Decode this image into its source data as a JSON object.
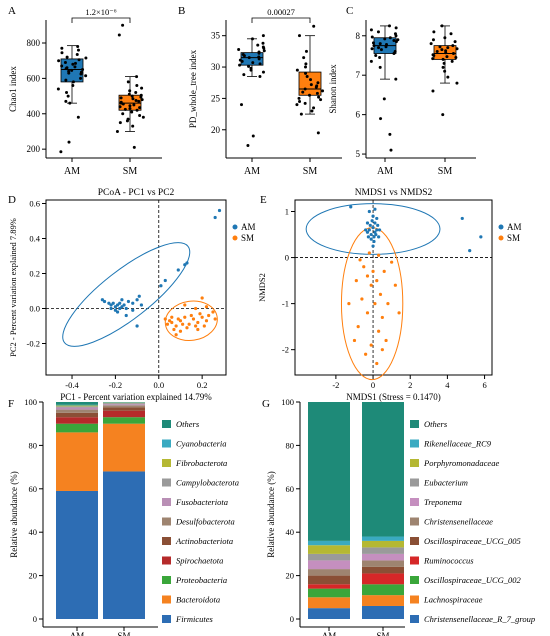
{
  "figure": {
    "background": "#ffffff"
  },
  "colors": {
    "AM": "#1f77b4",
    "SM": "#ff7f0e"
  },
  "chart_data": [
    {
      "panel": "A",
      "type": "box",
      "ylabel": "Chao1 index",
      "categories": [
        "AM",
        "SM"
      ],
      "yticks": [
        200,
        400,
        600,
        800
      ],
      "ylim": [
        150,
        930
      ],
      "significance": "1.2×10⁻⁶",
      "boxes": [
        {
          "name": "AM",
          "min": 460,
          "q1": 580,
          "median": 650,
          "q3": 710,
          "max": 785
        },
        {
          "name": "SM",
          "min": 300,
          "q1": 420,
          "median": 460,
          "q3": 505,
          "max": 610
        }
      ],
      "points": {
        "AM": [
          780,
          770,
          760,
          745,
          735,
          720,
          715,
          705,
          700,
          690,
          685,
          680,
          670,
          665,
          660,
          655,
          650,
          645,
          640,
          635,
          630,
          625,
          615,
          600,
          590,
          580,
          560,
          540,
          520,
          500,
          470,
          460,
          380,
          240,
          185
        ],
        "SM": [
          900,
          845,
          610,
          580,
          560,
          545,
          530,
          520,
          510,
          505,
          500,
          495,
          490,
          485,
          480,
          475,
          470,
          465,
          460,
          455,
          450,
          445,
          440,
          435,
          430,
          425,
          420,
          410,
          400,
          390,
          380,
          370,
          360,
          350,
          330,
          300,
          210
        ]
      }
    },
    {
      "panel": "B",
      "type": "box",
      "ylabel": "PD_whole_tree index",
      "categories": [
        "AM",
        "SM"
      ],
      "yticks": [
        20,
        25,
        30,
        35
      ],
      "ylim": [
        15.5,
        37.5
      ],
      "significance": "0.00027",
      "boxes": [
        {
          "name": "AM",
          "min": 28.5,
          "q1": 30.3,
          "median": 31.5,
          "q3": 32.3,
          "max": 34.5
        },
        {
          "name": "SM",
          "min": 22.5,
          "q1": 25.5,
          "median": 26.5,
          "q3": 29.2,
          "max": 35.0
        }
      ],
      "points": {
        "AM": [
          35.0,
          34.5,
          33.8,
          33.5,
          33.2,
          33.0,
          32.8,
          32.6,
          32.4,
          32.2,
          32.0,
          31.8,
          31.6,
          31.5,
          31.3,
          31.1,
          30.9,
          30.7,
          30.5,
          30.3,
          30.1,
          29.8,
          29.5,
          29.2,
          28.8,
          28.5,
          24.0,
          19.0,
          17.5
        ],
        "SM": [
          36.5,
          35.0,
          32.5,
          31.5,
          30.5,
          30.0,
          29.5,
          29.0,
          28.5,
          28.0,
          27.5,
          27.2,
          27.0,
          26.8,
          26.5,
          26.2,
          26.0,
          25.8,
          25.5,
          25.2,
          25.0,
          24.8,
          24.5,
          24.2,
          24.0,
          23.5,
          23.0,
          22.5,
          19.5
        ]
      }
    },
    {
      "panel": "C",
      "type": "box",
      "ylabel": "Shanon index",
      "categories": [
        "AM",
        "SM"
      ],
      "yticks": [
        5,
        6,
        7,
        8
      ],
      "ylim": [
        4.9,
        8.4
      ],
      "significance": "",
      "boxes": [
        {
          "name": "AM",
          "min": 6.9,
          "q1": 7.55,
          "median": 7.75,
          "q3": 7.95,
          "max": 8.25
        },
        {
          "name": "SM",
          "min": 6.8,
          "q1": 7.4,
          "median": 7.55,
          "q3": 7.75,
          "max": 8.25
        }
      ],
      "points": {
        "AM": [
          8.25,
          8.2,
          8.15,
          8.1,
          8.05,
          8.0,
          7.97,
          7.95,
          7.92,
          7.9,
          7.88,
          7.85,
          7.82,
          7.8,
          7.78,
          7.75,
          7.72,
          7.7,
          7.67,
          7.65,
          7.6,
          7.55,
          7.5,
          7.45,
          7.35,
          7.2,
          6.9,
          6.4,
          5.9,
          5.5,
          5.1
        ],
        "SM": [
          8.25,
          8.1,
          8.05,
          7.95,
          7.9,
          7.85,
          7.8,
          7.75,
          7.72,
          7.7,
          7.67,
          7.65,
          7.62,
          7.6,
          7.57,
          7.55,
          7.52,
          7.5,
          7.47,
          7.45,
          7.42,
          7.4,
          7.35,
          7.3,
          7.2,
          7.1,
          6.95,
          6.8,
          6.6,
          6.0
        ]
      }
    },
    {
      "panel": "D",
      "type": "scatter",
      "title": "PCoA - PC1 vs PC2",
      "xlabel": "PC1 - Percent variation explained 14.79%",
      "ylabel": "PC2 - Percent variation explained 7.89%",
      "xlim": [
        -0.52,
        0.31
      ],
      "ylim": [
        -0.38,
        0.62
      ],
      "xticks": [
        -0.4,
        -0.2,
        0.0,
        0.2
      ],
      "xtick_labels": [
        "-0.4",
        "-0.2",
        "0.0",
        "0.2"
      ],
      "yticks": [
        -0.2,
        0.0,
        0.2,
        0.4,
        0.6
      ],
      "ytick_labels": [
        "-0.2",
        "0.0",
        "0.2",
        "0.4",
        "0.6"
      ],
      "legend": [
        "AM",
        "SM"
      ],
      "legend_position": "right",
      "ellipses": [
        {
          "group": "AM",
          "cx": -0.15,
          "cy": 0.08,
          "rx": 0.42,
          "ry": 0.13,
          "angle_deg": 38
        },
        {
          "group": "SM",
          "cx": 0.15,
          "cy": -0.07,
          "rx": 0.14,
          "ry": 0.105,
          "angle_deg": 8
        }
      ],
      "series": [
        {
          "name": "AM",
          "points": [
            [
              -0.25,
              0.04
            ],
            [
              -0.23,
              0.03
            ],
            [
              -0.22,
              0.02
            ],
            [
              -0.21,
              0.03
            ],
            [
              -0.2,
              0.01
            ],
            [
              -0.19,
              0.02
            ],
            [
              -0.18,
              0.03
            ],
            [
              -0.17,
              0.01
            ],
            [
              -0.16,
              0.02
            ],
            [
              -0.15,
              0.0
            ],
            [
              -0.22,
              0.0
            ],
            [
              -0.2,
              -0.01
            ],
            [
              -0.18,
              0.0
            ],
            [
              -0.14,
              0.04
            ],
            [
              -0.12,
              0.03
            ],
            [
              -0.1,
              0.05
            ],
            [
              -0.26,
              0.05
            ],
            [
              -0.19,
              -0.02
            ],
            [
              -0.15,
              -0.04
            ],
            [
              -0.17,
              0.05
            ],
            [
              -0.08,
              0.02
            ],
            [
              -0.12,
              -0.01
            ],
            [
              0.01,
              0.13
            ],
            [
              0.03,
              0.16
            ],
            [
              -0.09,
              0.07
            ],
            [
              0.09,
              0.22
            ],
            [
              0.13,
              0.26
            ],
            [
              0.26,
              0.52
            ],
            [
              0.28,
              0.56
            ],
            [
              0.12,
              0.25
            ],
            [
              -0.1,
              -0.1
            ]
          ]
        },
        {
          "name": "SM",
          "points": [
            [
              0.05,
              -0.07
            ],
            [
              0.06,
              -0.08
            ],
            [
              0.08,
              -0.1
            ],
            [
              0.1,
              -0.07
            ],
            [
              0.12,
              -0.05
            ],
            [
              0.14,
              -0.09
            ],
            [
              0.16,
              -0.06
            ],
            [
              0.18,
              -0.08
            ],
            [
              0.2,
              -0.05
            ],
            [
              0.22,
              -0.07
            ],
            [
              0.07,
              -0.12
            ],
            [
              0.09,
              -0.06
            ],
            [
              0.11,
              -0.09
            ],
            [
              0.13,
              -0.11
            ],
            [
              0.15,
              -0.04
            ],
            [
              0.17,
              -0.1
            ],
            [
              0.19,
              -0.03
            ],
            [
              0.21,
              -0.1
            ],
            [
              0.23,
              -0.04
            ],
            [
              0.04,
              -0.09
            ],
            [
              0.06,
              -0.05
            ],
            [
              0.1,
              -0.13
            ],
            [
              0.18,
              -0.12
            ],
            [
              0.22,
              0.01
            ],
            [
              0.2,
              0.06
            ],
            [
              0.25,
              -0.02
            ],
            [
              0.08,
              -0.15
            ],
            [
              0.12,
              0.02
            ],
            [
              0.17,
              0.0
            ],
            [
              0.26,
              -0.06
            ],
            [
              0.03,
              -0.06
            ]
          ]
        }
      ]
    },
    {
      "panel": "E",
      "type": "scatter",
      "title": "NMDS1 vs NMDS2",
      "xlabel": "NMDS1 (Stress = 0.1470)",
      "ylabel": "NMDS2",
      "xlim": [
        -4.2,
        6.4
      ],
      "ylim": [
        -2.55,
        1.25
      ],
      "xticks": [
        -2,
        0,
        2,
        4,
        6
      ],
      "xtick_labels": [
        "-2",
        "0",
        "2",
        "4",
        "6"
      ],
      "yticks": [
        -2,
        -1,
        0,
        1
      ],
      "ytick_labels": [
        "-2",
        "-1",
        "0",
        "1"
      ],
      "legend": [
        "AM",
        "SM"
      ],
      "legend_position": "right",
      "ellipses": [
        {
          "group": "AM",
          "cx": 0.0,
          "cy": 0.62,
          "rx": 3.6,
          "ry": 0.55,
          "angle_deg": 0
        },
        {
          "group": "SM",
          "cx": -0.05,
          "cy": -1.0,
          "rx": 1.65,
          "ry": 1.65,
          "angle_deg": 0
        }
      ],
      "series": [
        {
          "name": "AM",
          "points": [
            [
              -0.3,
              0.55
            ],
            [
              -0.2,
              0.6
            ],
            [
              -0.1,
              0.5
            ],
            [
              0.0,
              0.65
            ],
            [
              0.1,
              0.55
            ],
            [
              0.2,
              0.6
            ],
            [
              -0.25,
              0.45
            ],
            [
              0.05,
              0.45
            ],
            [
              0.15,
              0.5
            ],
            [
              -0.15,
              0.7
            ],
            [
              0.1,
              0.75
            ],
            [
              -0.05,
              0.8
            ],
            [
              0.25,
              0.7
            ],
            [
              -0.3,
              0.75
            ],
            [
              0.0,
              0.9
            ],
            [
              0.2,
              0.85
            ],
            [
              -0.2,
              1.0
            ],
            [
              0.1,
              1.05
            ],
            [
              -0.1,
              0.4
            ],
            [
              0.3,
              0.45
            ],
            [
              -0.4,
              0.6
            ],
            [
              0.35,
              0.6
            ],
            [
              0.05,
              0.35
            ],
            [
              -1.2,
              1.1
            ],
            [
              4.8,
              0.85
            ],
            [
              5.2,
              0.15
            ],
            [
              5.8,
              0.45
            ],
            [
              0.0,
              0.25
            ]
          ]
        },
        {
          "name": "SM",
          "points": [
            [
              -0.5,
              -0.2
            ],
            [
              -0.3,
              -0.4
            ],
            [
              -0.1,
              -0.6
            ],
            [
              0.2,
              -0.5
            ],
            [
              0.4,
              -0.8
            ],
            [
              -0.6,
              -0.9
            ],
            [
              0.1,
              -1.0
            ],
            [
              -0.3,
              -1.2
            ],
            [
              0.5,
              -1.3
            ],
            [
              -0.8,
              -1.5
            ],
            [
              0.3,
              -1.6
            ],
            [
              -0.1,
              -1.9
            ],
            [
              0.6,
              -0.3
            ],
            [
              -0.9,
              -0.5
            ],
            [
              0.8,
              -1.0
            ],
            [
              -0.4,
              -2.1
            ],
            [
              0.2,
              -2.3
            ],
            [
              1.2,
              -0.6
            ],
            [
              1.4,
              -1.2
            ],
            [
              -1.3,
              -1.0
            ],
            [
              0.0,
              -0.3
            ],
            [
              -0.2,
              0.1
            ],
            [
              0.3,
              0.05
            ],
            [
              -0.7,
              -0.05
            ],
            [
              0.7,
              -1.8
            ],
            [
              -1.0,
              -1.8
            ],
            [
              1.0,
              -0.1
            ],
            [
              0.5,
              -2.0
            ]
          ]
        }
      ]
    },
    {
      "panel": "F",
      "type": "stacked_bar",
      "ylabel": "Relative abundance (%)",
      "categories": [
        "AM",
        "SM"
      ],
      "yticks": [
        0,
        20,
        40,
        60,
        80,
        100
      ],
      "ylim": [
        0,
        100
      ],
      "legend_position": "right",
      "series": [
        {
          "name": "Firmicutes",
          "color": "#2d6db4",
          "values": [
            59,
            68
          ]
        },
        {
          "name": "Bacteroidota",
          "color": "#f58220",
          "values": [
            27,
            22
          ]
        },
        {
          "name": "Proteobacteria",
          "color": "#3aa63a",
          "values": [
            4,
            3
          ]
        },
        {
          "name": "Spirochaetota",
          "color": "#b52a2a",
          "values": [
            3,
            3
          ]
        },
        {
          "name": "Actinobacteriota",
          "color": "#8a4f35",
          "values": [
            2,
            1.5
          ]
        },
        {
          "name": "Desulfobacterota",
          "color": "#9e8470",
          "values": [
            1.5,
            1
          ]
        },
        {
          "name": "Fusobacteriota",
          "color": "#b98fb5",
          "values": [
            1,
            0.5
          ]
        },
        {
          "name": "Campylobacterota",
          "color": "#9a9a9a",
          "values": [
            0.5,
            0.5
          ]
        },
        {
          "name": "Fibrobacterota",
          "color": "#b5b833",
          "values": [
            0.4,
            0.2
          ]
        },
        {
          "name": "Cyanobacteria",
          "color": "#3aaac1",
          "values": [
            0.3,
            0.2
          ]
        },
        {
          "name": "Others",
          "color": "#1e8a78",
          "values": [
            1.3,
            0.1
          ]
        }
      ]
    },
    {
      "panel": "G",
      "type": "stacked_bar",
      "ylabel": "Relative abundance (%)",
      "categories": [
        "AM",
        "SM"
      ],
      "yticks": [
        0,
        20,
        40,
        60,
        80,
        100
      ],
      "ylim": [
        0,
        100
      ],
      "legend_position": "right",
      "series": [
        {
          "name": "Christensenellaceae_R_7_group",
          "color": "#2d6db4",
          "values": [
            5,
            6
          ]
        },
        {
          "name": "Lachnospiraceae",
          "color": "#f58220",
          "values": [
            5,
            5
          ]
        },
        {
          "name": "Oscillospiraceae_UCG_002",
          "color": "#3aa63a",
          "values": [
            4,
            5
          ]
        },
        {
          "name": "Ruminococcus",
          "color": "#d62728",
          "values": [
            2,
            5
          ]
        },
        {
          "name": "Oscillospiraceae_UCG_005",
          "color": "#8a4f35",
          "values": [
            4,
            3
          ]
        },
        {
          "name": "Christensenellaceae",
          "color": "#9e8470",
          "values": [
            3,
            3
          ]
        },
        {
          "name": "Treponema",
          "color": "#c58fbf",
          "values": [
            4,
            3
          ]
        },
        {
          "name": "Eubacterium",
          "color": "#9a9a9a",
          "values": [
            3,
            3
          ]
        },
        {
          "name": "Porphyromonadaceae",
          "color": "#b5b833",
          "values": [
            4,
            3
          ]
        },
        {
          "name": "Rikenellaceae_RC9",
          "color": "#3aaac1",
          "values": [
            2,
            2
          ]
        },
        {
          "name": "Others",
          "color": "#1e8a78",
          "values": [
            64,
            62
          ]
        }
      ]
    }
  ]
}
